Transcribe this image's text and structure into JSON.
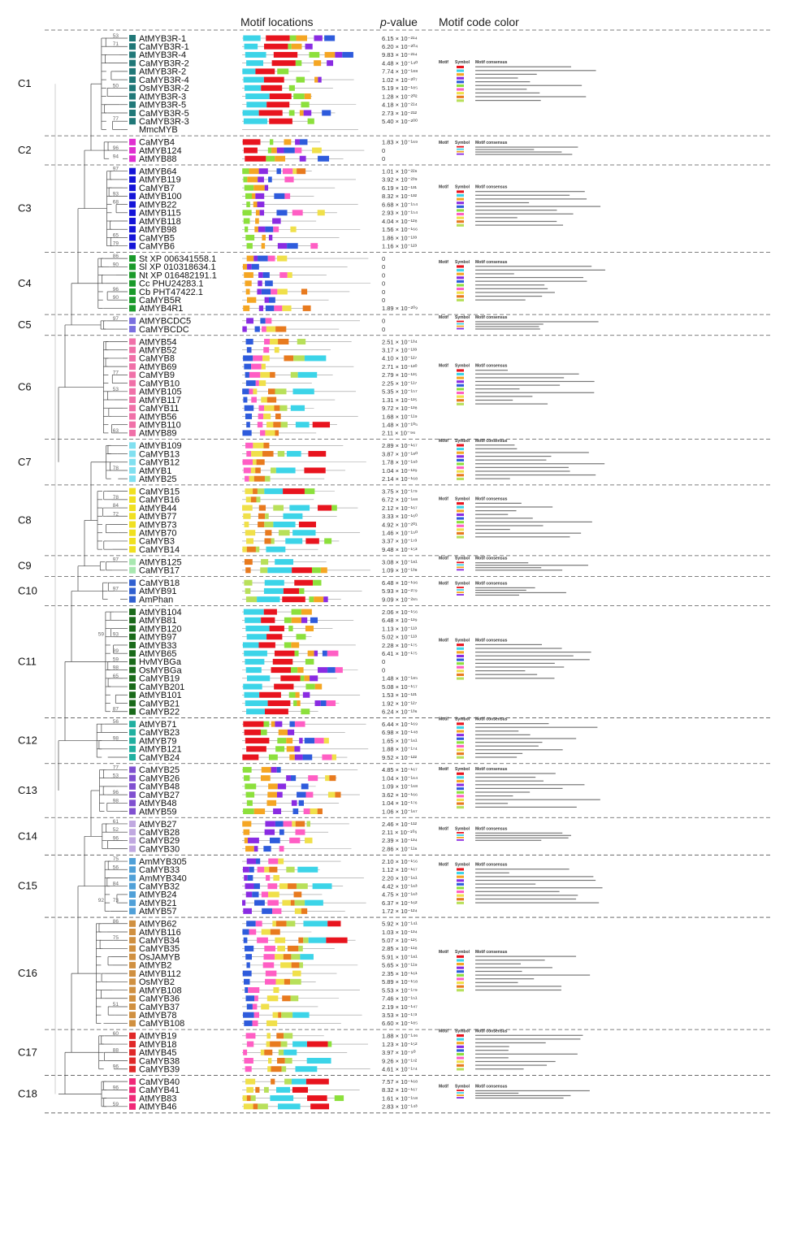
{
  "headers": {
    "motif_locations": "Motif locations",
    "p_value_italic": "p",
    "p_value_rest": "-value",
    "motif_code_color": "Motif code color"
  },
  "table_headers": [
    "Motif",
    "Symbol",
    "Motif consensus"
  ],
  "motif_colors": [
    "#e8141e",
    "#3cd4e8",
    "#f5a623",
    "#8a2be2",
    "#2e5bdc",
    "#8ce03c",
    "#ff5ec4",
    "#f0e04a",
    "#e87a1e",
    "#b8e05a"
  ],
  "branch_colors": {
    "line": "#444444",
    "backbone": "#bbbbbb",
    "divider": "#555555"
  },
  "clades": [
    {
      "id": "C1",
      "leaves": [
        {
          "name": "AtMYB3R-1",
          "color": "#207878",
          "p": "6.15 × 10⁻²¹⁴"
        },
        {
          "name": "CaMYB3R-1",
          "color": "#207878",
          "p": "6.20 × 10⁻²⁰⁴"
        },
        {
          "name": "AtMYB3R-4",
          "color": "#207878",
          "p": "9.83 × 10⁻²¹⁴"
        },
        {
          "name": "CaMYB3R-2",
          "color": "#207878",
          "p": "4.48 × 10⁻¹⁴⁰"
        },
        {
          "name": "AtMYB3R-2",
          "color": "#207878",
          "p": "7.74 × 10⁻¹⁸⁸"
        },
        {
          "name": "CaMYB3R-4",
          "color": "#207878",
          "p": "1.02 × 10⁻²⁰⁷"
        },
        {
          "name": "OsMYB3R-2",
          "color": "#207878",
          "p": "5.19 × 10⁻¹⁸⁵"
        },
        {
          "name": "AtMYB3R-3",
          "color": "#207878",
          "p": "1.28 × 10⁻²⁰²"
        },
        {
          "name": "AtMYB3R-5",
          "color": "#207878",
          "p": "4.18 × 10⁻²¹⁴"
        },
        {
          "name": "CaMYB3R-5",
          "color": "#207878",
          "p": "2.73 × 10⁻²¹²"
        },
        {
          "name": "CaMYB3R-3",
          "color": "#207878",
          "p": "5.40 × 10⁻²⁰⁰"
        },
        {
          "name": "MmcMYB",
          "color": "",
          "p": ""
        }
      ]
    },
    {
      "id": "C2",
      "leaves": [
        {
          "name": "CaMYB4",
          "color": "#e030d0",
          "p": "1.83 × 10⁻¹⁶⁹"
        },
        {
          "name": "AtMYB124",
          "color": "#e030d0",
          "p": "0"
        },
        {
          "name": "AtMYB88",
          "color": "#e030d0",
          "p": "0"
        }
      ]
    },
    {
      "id": "C3",
      "leaves": [
        {
          "name": "AtMYB64",
          "color": "#1414d8",
          "p": "1.01 × 10⁻²²⁶"
        },
        {
          "name": "AtMYB119",
          "color": "#1414d8",
          "p": "3.92 × 10⁻²³⁹"
        },
        {
          "name": "CaMYB7",
          "color": "#1414d8",
          "p": "6.19 × 10⁻¹³¹"
        },
        {
          "name": "AtMYB100",
          "color": "#1414d8",
          "p": "8.32 × 10⁻¹³²"
        },
        {
          "name": "AtMYB22",
          "color": "#1414d8",
          "p": "6.68 × 10⁻¹⁵⁴"
        },
        {
          "name": "AtMYB115",
          "color": "#1414d8",
          "p": "2.93 × 10⁻¹⁵⁴"
        },
        {
          "name": "AtMYB118",
          "color": "#1414d8",
          "p": "4.04 × 10⁻¹²⁸"
        },
        {
          "name": "AtMYB98",
          "color": "#1414d8",
          "p": "1.56 × 10⁻¹⁶⁶"
        },
        {
          "name": "CaMYB5",
          "color": "#1414d8",
          "p": "1.86 × 10⁻¹³³"
        },
        {
          "name": "CaMYB6",
          "color": "#1414d8",
          "p": "1.16 × 10⁻¹²³"
        }
      ]
    },
    {
      "id": "C4",
      "leaves": [
        {
          "name": "St XP 006341558.1",
          "color": "#1a9a2a",
          "p": "0"
        },
        {
          "name": "Sl XP 010318634.1",
          "color": "#1a9a2a",
          "p": "0"
        },
        {
          "name": "Nt XP 016482191.1",
          "color": "#1a9a2a",
          "p": "0"
        },
        {
          "name": "Cc PHU24283.1",
          "color": "#1a9a2a",
          "p": "0"
        },
        {
          "name": "Cb PHT47422.1",
          "color": "#1a9a2a",
          "p": "0"
        },
        {
          "name": "CaMYB5R",
          "color": "#1a9a2a",
          "p": "0"
        },
        {
          "name": "AtMYB4R1",
          "color": "#1a9a2a",
          "p": "1.89 × 10⁻²⁰⁹"
        }
      ]
    },
    {
      "id": "C5",
      "leaves": [
        {
          "name": "AtMYBCDC5",
          "color": "#7a6fe0",
          "p": "0"
        },
        {
          "name": "CaMYBCDC",
          "color": "#7a6fe0",
          "p": "0"
        }
      ]
    },
    {
      "id": "C6",
      "leaves": [
        {
          "name": "AtMYB54",
          "color": "#f070a8",
          "p": "2.51 × 10⁻¹³⁴"
        },
        {
          "name": "AtMYB52",
          "color": "#f070a8",
          "p": "3.17 × 10⁻¹³³"
        },
        {
          "name": "CaMYB8",
          "color": "#f070a8",
          "p": "4.10 × 10⁻¹²⁷"
        },
        {
          "name": "AtMYB69",
          "color": "#f070a8",
          "p": "2.71 × 10⁻¹³⁰"
        },
        {
          "name": "CaMYB9",
          "color": "#f070a8",
          "p": "2.79 × 10⁻¹³⁵"
        },
        {
          "name": "CaMYB10",
          "color": "#f070a8",
          "p": "2.25 × 10⁻¹¹⁷"
        },
        {
          "name": "AtMYB105",
          "color": "#f070a8",
          "p": "5.35 × 10⁻¹⁵⁷"
        },
        {
          "name": "AtMYB117",
          "color": "#f070a8",
          "p": "1.31 × 10⁻¹³⁵"
        },
        {
          "name": "CaMYB11",
          "color": "#f070a8",
          "p": "9.72 × 10⁻¹³⁸"
        },
        {
          "name": "AtMYB56",
          "color": "#f070a8",
          "p": "1.68 × 10⁻¹¹⁹"
        },
        {
          "name": "AtMYB110",
          "color": "#f070a8",
          "p": "1.48 × 10⁻¹⁰⁵"
        },
        {
          "name": "AtMYB89",
          "color": "#f070a8",
          "p": "2.11 × 10⁻⁹⁶"
        }
      ]
    },
    {
      "id": "C7",
      "leaves": [
        {
          "name": "AtMYB109",
          "color": "#80e0f0",
          "p": "2.89 × 10⁻¹⁶⁷"
        },
        {
          "name": "CaMYB13",
          "color": "#80e0f0",
          "p": "3.87 × 10⁻¹⁸⁰"
        },
        {
          "name": "CaMYB12",
          "color": "#80e0f0",
          "p": "1.78 × 10⁻¹⁹³"
        },
        {
          "name": "AtMYB1",
          "color": "#80e0f0",
          "p": "1.04 × 10⁻¹³⁹"
        },
        {
          "name": "AtMYB25",
          "color": "#80e0f0",
          "p": "2.14 × 10⁻¹⁶⁸"
        }
      ]
    },
    {
      "id": "C8",
      "leaves": [
        {
          "name": "CaMYB15",
          "color": "#f0e020",
          "p": "3.75 × 10⁻¹⁷⁹"
        },
        {
          "name": "CaMYB16",
          "color": "#f0e020",
          "p": "6.72 × 10⁻¹⁶⁸"
        },
        {
          "name": "AtMYB44",
          "color": "#f0e020",
          "p": "2.12 × 10⁻¹⁶⁷"
        },
        {
          "name": "AtMYB77",
          "color": "#f0e020",
          "p": "3.33 × 10⁻¹⁶⁰"
        },
        {
          "name": "AtMYB73",
          "color": "#f0e020",
          "p": "4.92 × 10⁻²⁰¹"
        },
        {
          "name": "AtMYB70",
          "color": "#f0e020",
          "p": "1.46 × 10⁻¹⁵⁰"
        },
        {
          "name": "CaMYB3",
          "color": "#f0e020",
          "p": "3.37 × 10⁻¹⁷³"
        },
        {
          "name": "CaMYB14",
          "color": "#f0e020",
          "p": "9.48 × 10⁻¹⁵³"
        }
      ]
    },
    {
      "id": "C9",
      "leaves": [
        {
          "name": "AtMYB125",
          "color": "#a8e8b0",
          "p": "3.08 × 10⁻¹⁸¹"
        },
        {
          "name": "CaMYB17",
          "color": "#a8e8b0",
          "p": "1.09 × 10⁻¹³⁸"
        }
      ]
    },
    {
      "id": "C10",
      "leaves": [
        {
          "name": "CaMYB18",
          "color": "#3060d0",
          "p": "6.48 × 10⁻¹⁹⁶"
        },
        {
          "name": "AtMYB91",
          "color": "#3060d0",
          "p": "5.93 × 10⁻²⁷⁹"
        },
        {
          "name": "AmPhan",
          "color": "#3060d0",
          "p": "9.09 × 10⁻²⁶⁵"
        }
      ]
    },
    {
      "id": "C11",
      "leaves": [
        {
          "name": "AtMYB104",
          "color": "#1a6a1a",
          "p": "2.06 × 10⁻¹⁵⁶"
        },
        {
          "name": "AtMYB81",
          "color": "#1a6a1a",
          "p": "6.48 × 10⁻¹³⁹"
        },
        {
          "name": "AtMYB120",
          "color": "#1a6a1a",
          "p": "1.13 × 10⁻¹¹³"
        },
        {
          "name": "AtMYB97",
          "color": "#1a6a1a",
          "p": "5.02 × 10⁻¹¹³"
        },
        {
          "name": "AtMYB33",
          "color": "#1a6a1a",
          "p": "2.28 × 10⁻¹⁷⁵"
        },
        {
          "name": "AtMYB65",
          "color": "#1a6a1a",
          "p": "6.41 × 10⁻¹⁷⁵"
        },
        {
          "name": "HvMYBGa",
          "color": "#1a6a1a",
          "p": "0"
        },
        {
          "name": "OsMYBGa",
          "color": "#1a6a1a",
          "p": "0"
        },
        {
          "name": "CaMYB19",
          "color": "#1a6a1a",
          "p": "1.48 × 10⁻¹⁸⁵"
        },
        {
          "name": "CaMYB201",
          "color": "#1a6a1a",
          "p": "5.08 × 10⁻¹⁵⁷"
        },
        {
          "name": "AtMYB101",
          "color": "#1a6a1a",
          "p": "1.53 × 10⁻¹²¹"
        },
        {
          "name": "CaMYB21",
          "color": "#1a6a1a",
          "p": "1.92 × 10⁻¹²⁷"
        },
        {
          "name": "CaMYB22",
          "color": "#1a6a1a",
          "p": "6.24 × 10⁻¹³⁶"
        }
      ]
    },
    {
      "id": "C12",
      "leaves": [
        {
          "name": "AtMYB71",
          "color": "#20b0a0",
          "p": "6.44 × 10⁻¹⁶⁹"
        },
        {
          "name": "CaMYB23",
          "color": "#20b0a0",
          "p": "6.98 × 10⁻¹⁴⁸"
        },
        {
          "name": "AtMYB79",
          "color": "#20b0a0",
          "p": "1.65 × 10⁻¹⁶¹"
        },
        {
          "name": "AtMYB121",
          "color": "#20b0a0",
          "p": "1.88 × 10⁻¹⁷⁴"
        },
        {
          "name": "CaMYB24",
          "color": "#20b0a0",
          "p": "9.52 × 10⁻¹²²"
        }
      ]
    },
    {
      "id": "C13",
      "leaves": [
        {
          "name": "CaMYB25",
          "color": "#8050d0",
          "p": "4.85 × 10⁻¹⁶⁷"
        },
        {
          "name": "CaMYB26",
          "color": "#8050d0",
          "p": "1.04 × 10⁻¹⁶⁴"
        },
        {
          "name": "CaMYB48",
          "color": "#8050d0",
          "p": "1.09 × 10⁻¹⁶⁸"
        },
        {
          "name": "CaMYB27",
          "color": "#8050d0",
          "p": "3.62 × 10⁻¹⁶⁶"
        },
        {
          "name": "AtMYB48",
          "color": "#8050d0",
          "p": "1.04 × 10⁻¹⁷⁶"
        },
        {
          "name": "AtMYB59",
          "color": "#8050d0",
          "p": "1.06 × 10⁻¹⁶⁷"
        }
      ]
    },
    {
      "id": "C14",
      "leaves": [
        {
          "name": "AtMYB27",
          "color": "#c0a8e0",
          "p": "2.46 × 10⁻¹¹²"
        },
        {
          "name": "CaMYB28",
          "color": "#c0a8e0",
          "p": "2.11 × 10⁻¹⁰⁶"
        },
        {
          "name": "CaMYB29",
          "color": "#c0a8e0",
          "p": "2.39 × 10⁻¹³⁴"
        },
        {
          "name": "CaMYB30",
          "color": "#c0a8e0",
          "p": "2.86 × 10⁻¹¹⁶"
        }
      ]
    },
    {
      "id": "C15",
      "leaves": [
        {
          "name": "AmMYB305",
          "color": "#50a0d8",
          "p": "2.10 × 10⁻¹⁵⁶"
        },
        {
          "name": "CaMYB33",
          "color": "#50a0d8",
          "p": "1.12 × 10⁻¹⁶⁷"
        },
        {
          "name": "AmMYB340",
          "color": "#50a0d8",
          "p": "2.20 × 10⁻¹⁶¹"
        },
        {
          "name": "CaMYB32",
          "color": "#50a0d8",
          "p": "4.42 × 10⁻¹⁶³"
        },
        {
          "name": "AtMYB24",
          "color": "#50a0d8",
          "p": "4.75 × 10⁻¹⁶³"
        },
        {
          "name": "AtMYB21",
          "color": "#50a0d8",
          "p": "6.37 × 10⁻¹⁶²"
        },
        {
          "name": "AtMYB57",
          "color": "#50a0d8",
          "p": "1.72 × 10⁻¹²⁴"
        }
      ]
    },
    {
      "id": "C16",
      "leaves": [
        {
          "name": "AtMYB62",
          "color": "#d09040",
          "p": "5.92 × 10⁻¹⁴¹"
        },
        {
          "name": "AtMYB116",
          "color": "#d09040",
          "p": "1.03 × 10⁻¹³⁴"
        },
        {
          "name": "CaMYB34",
          "color": "#d09040",
          "p": "5.07 × 10⁻¹²⁵"
        },
        {
          "name": "CaMYB35",
          "color": "#d09040",
          "p": "2.85 × 10⁻¹¹⁸"
        },
        {
          "name": "OsJAMYB",
          "color": "#d09040",
          "p": "5.91 × 10⁻¹⁸¹"
        },
        {
          "name": "AtMYB2",
          "color": "#d09040",
          "p": "5.65 × 10⁻¹¹⁹"
        },
        {
          "name": "AtMYB112",
          "color": "#d09040",
          "p": "2.35 × 10⁻¹⁶¹"
        },
        {
          "name": "OsMYB2",
          "color": "#d09040",
          "p": "5.89 × 10⁻¹⁵⁸"
        },
        {
          "name": "AtMYB108",
          "color": "#d09040",
          "p": "5.53 × 10⁻¹⁷⁹"
        },
        {
          "name": "CaMYB36",
          "color": "#d09040",
          "p": "7.46 × 10⁻¹⁵¹"
        },
        {
          "name": "CaMYB37",
          "color": "#d09040",
          "p": "2.19 × 10⁻¹⁴⁷"
        },
        {
          "name": "AtMYB78",
          "color": "#d09040",
          "p": "3.53 × 10⁻¹⁷³"
        },
        {
          "name": "CaMYB108",
          "color": "#d09040",
          "p": "6.60 × 10⁻¹⁸⁵"
        }
      ]
    },
    {
      "id": "C17",
      "leaves": [
        {
          "name": "AtMYB19",
          "color": "#e02828",
          "p": "1.88 × 10⁻¹⁴⁶"
        },
        {
          "name": "AtMYB18",
          "color": "#e02828",
          "p": "1.23 × 10⁻¹⁵²"
        },
        {
          "name": "AtMYB45",
          "color": "#e02828",
          "p": "3.97 × 10⁻⁹⁰"
        },
        {
          "name": "CaMYB38",
          "color": "#e02828",
          "p": "9.26 × 10⁻¹⁷²"
        },
        {
          "name": "CaMYB39",
          "color": "#e02828",
          "p": "4.61 × 10⁻¹⁷⁴"
        }
      ]
    },
    {
      "id": "C18",
      "leaves": [
        {
          "name": "CaMYB40",
          "color": "#f02878",
          "p": "7.57 × 10⁻¹⁶⁸"
        },
        {
          "name": "CaMYB41",
          "color": "#f02878",
          "p": "8.32 × 10⁻¹⁶⁷"
        },
        {
          "name": "AtMYB83",
          "color": "#f02878",
          "p": "1.61 × 10⁻¹⁵⁸"
        },
        {
          "name": "AtMYB46",
          "color": "#f02878",
          "p": "2.83 × 10⁻¹⁴³"
        }
      ]
    }
  ],
  "bootstrap": [
    {
      "value": "53",
      "leaf": "AtMYB3R-1"
    },
    {
      "value": "71",
      "leaf": "CaMYB3R-1"
    },
    {
      "value": "50",
      "leaf": "OsMYB3R-2"
    },
    {
      "value": "77",
      "leaf": "CaMYB3R-3"
    },
    {
      "value": "96",
      "leaf": "AtMYB124"
    },
    {
      "value": "94",
      "leaf": "AtMYB88"
    },
    {
      "value": "97",
      "leaf": "AtMYB64"
    },
    {
      "value": "93",
      "leaf": "AtMYB100"
    },
    {
      "value": "68",
      "leaf": "AtMYB22"
    },
    {
      "value": "65",
      "leaf": "CaMYB5"
    },
    {
      "value": "79",
      "leaf": "CaMYB6"
    },
    {
      "value": "86",
      "leaf": "St XP 006341558.1"
    },
    {
      "value": "90",
      "leaf": "Sl XP 010318634.1"
    },
    {
      "value": "96",
      "leaf": "Cb PHT47422.1"
    },
    {
      "value": "90",
      "leaf": "CaMYB5R"
    },
    {
      "value": "97",
      "leaf": "AtMYBCDC5"
    },
    {
      "value": "77",
      "leaf": "CaMYB9"
    },
    {
      "value": "53",
      "leaf": "AtMYB105"
    },
    {
      "value": "63",
      "leaf": "AtMYB89"
    },
    {
      "value": "78",
      "leaf": "AtMYB1"
    },
    {
      "value": "78",
      "leaf": "CaMYB16"
    },
    {
      "value": "84",
      "leaf": "AtMYB44"
    },
    {
      "value": "72",
      "leaf": "AtMYB77"
    },
    {
      "value": "97",
      "leaf": "AtMYB125"
    },
    {
      "value": "97",
      "leaf": "AtMYB91"
    },
    {
      "value": "93",
      "leaf": "AtMYB97"
    },
    {
      "value": "59",
      "leaf": "AtMYB97"
    },
    {
      "value": "89",
      "leaf": "AtMYB65"
    },
    {
      "value": "59",
      "leaf": "HvMYBGa"
    },
    {
      "value": "98",
      "leaf": "OsMYBGa"
    },
    {
      "value": "65",
      "leaf": "CaMYB19"
    },
    {
      "value": "87",
      "leaf": "CaMYB22"
    },
    {
      "value": "56",
      "leaf": "AtMYB71"
    },
    {
      "value": "98",
      "leaf": "AtMYB79"
    },
    {
      "value": "77",
      "leaf": "CaMYB25"
    },
    {
      "value": "53",
      "leaf": "CaMYB26"
    },
    {
      "value": "96",
      "leaf": "CaMYB27"
    },
    {
      "value": "98",
      "leaf": "AtMYB48"
    },
    {
      "value": "61",
      "leaf": "AtMYB27"
    },
    {
      "value": "52",
      "leaf": "CaMYB28"
    },
    {
      "value": "96",
      "leaf": "CaMYB29"
    },
    {
      "value": "75",
      "leaf": "AmMYB305"
    },
    {
      "value": "56",
      "leaf": "CaMYB33"
    },
    {
      "value": "84",
      "leaf": "CaMYB32"
    },
    {
      "value": "73",
      "leaf": "AtMYB21"
    },
    {
      "value": "92",
      "leaf": "AtMYB21"
    },
    {
      "value": "86",
      "leaf": "AtMYB62"
    },
    {
      "value": "75",
      "leaf": "CaMYB34"
    },
    {
      "value": "51",
      "leaf": "CaMYB37"
    },
    {
      "value": "60",
      "leaf": "AtMYB19"
    },
    {
      "value": "88",
      "leaf": "AtMYB45"
    },
    {
      "value": "96",
      "leaf": "CaMYB39"
    },
    {
      "value": "96",
      "leaf": "CaMYB41"
    },
    {
      "value": "59",
      "leaf": "AtMYB46"
    }
  ]
}
